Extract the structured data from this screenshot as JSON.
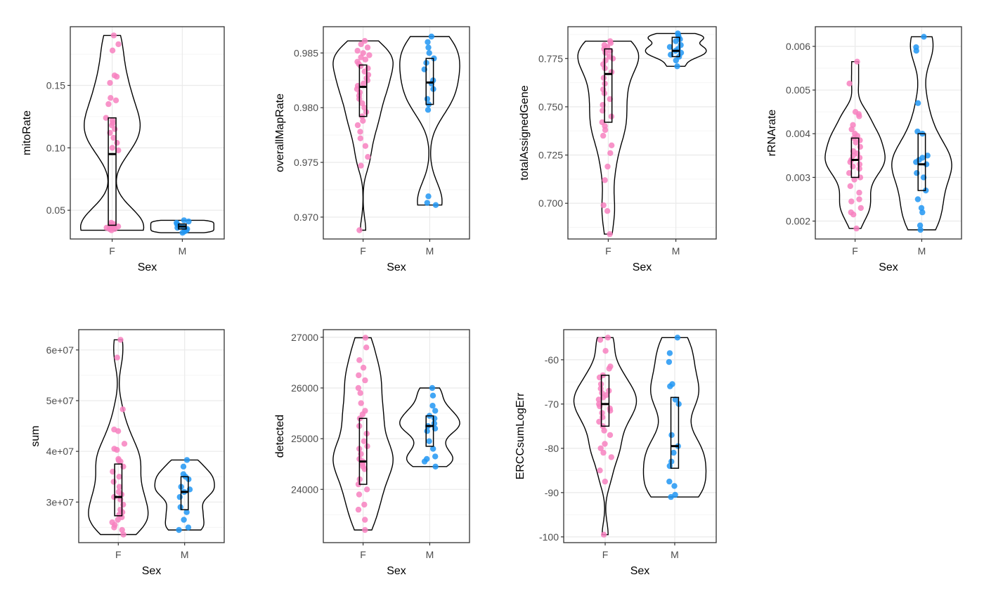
{
  "chart_data": [
    {
      "type": "violin",
      "ylabel": "mitoRate",
      "xlabel": "Sex",
      "categories": [
        "F",
        "M"
      ],
      "yticks": [
        "0.05",
        "0.10",
        "0.15"
      ],
      "ytick_values": [
        0.05,
        0.1,
        0.15
      ],
      "ylim": [
        0.027,
        0.197
      ],
      "groups": [
        {
          "name": "F",
          "min": 0.035,
          "q1": 0.038,
          "median": 0.095,
          "q3": 0.124,
          "max": 0.19,
          "points": [
            0.19,
            0.183,
            0.178,
            0.158,
            0.157,
            0.152,
            0.14,
            0.138,
            0.135,
            0.124,
            0.122,
            0.12,
            0.118,
            0.115,
            0.112,
            0.108,
            0.104,
            0.1,
            0.098,
            0.04,
            0.039,
            0.038,
            0.037,
            0.037,
            0.036,
            0.036,
            0.035,
            0.035,
            0.035,
            0.034
          ]
        },
        {
          "name": "M",
          "min": 0.032,
          "q1": 0.035,
          "median": 0.037,
          "q3": 0.039,
          "max": 0.042,
          "points": [
            0.042,
            0.041,
            0.04,
            0.039,
            0.038,
            0.037,
            0.036,
            0.035,
            0.034,
            0.033,
            0.032
          ]
        }
      ]
    },
    {
      "type": "violin",
      "ylabel": "overallMapRate",
      "xlabel": "Sex",
      "categories": [
        "F",
        "M"
      ],
      "yticks": [
        "0.970",
        "0.975",
        "0.980",
        "0.985"
      ],
      "ytick_values": [
        0.97,
        0.975,
        0.98,
        0.985
      ],
      "ylim": [
        0.968,
        0.9874
      ],
      "groups": [
        {
          "name": "F",
          "min": 0.9688,
          "q1": 0.9792,
          "median": 0.9819,
          "q3": 0.9839,
          "max": 0.9861,
          "points": [
            0.9861,
            0.9858,
            0.9855,
            0.9852,
            0.985,
            0.9848,
            0.9846,
            0.9844,
            0.9842,
            0.984,
            0.9838,
            0.9836,
            0.9833,
            0.983,
            0.9827,
            0.9825,
            0.9822,
            0.982,
            0.9817,
            0.9814,
            0.9811,
            0.9808,
            0.9804,
            0.98,
            0.9796,
            0.9792,
            0.9788,
            0.9784,
            0.9778,
            0.9772,
            0.9765,
            0.9755,
            0.9747,
            0.9688
          ]
        },
        {
          "name": "M",
          "min": 0.9711,
          "q1": 0.9803,
          "median": 0.9823,
          "q3": 0.9845,
          "max": 0.9865,
          "points": [
            0.9865,
            0.986,
            0.9855,
            0.985,
            0.9845,
            0.9841,
            0.9835,
            0.9825,
            0.9822,
            0.9817,
            0.9808,
            0.9803,
            0.9798,
            0.9719,
            0.9713,
            0.9711
          ]
        }
      ]
    },
    {
      "type": "violin",
      "ylabel": "totalAssignedGene",
      "xlabel": "Sex",
      "categories": [
        "F",
        "M"
      ],
      "yticks": [
        "0.700",
        "0.725",
        "0.750",
        "0.775"
      ],
      "ytick_values": [
        0.7,
        0.725,
        0.75,
        0.775
      ],
      "ylim": [
        0.6815,
        0.7915
      ],
      "groups": [
        {
          "name": "F",
          "min": 0.684,
          "q1": 0.742,
          "median": 0.767,
          "q3": 0.78,
          "max": 0.784,
          "points": [
            0.784,
            0.783,
            0.782,
            0.781,
            0.78,
            0.779,
            0.778,
            0.776,
            0.775,
            0.774,
            0.772,
            0.77,
            0.768,
            0.765,
            0.762,
            0.759,
            0.757,
            0.754,
            0.751,
            0.748,
            0.745,
            0.742,
            0.74,
            0.738,
            0.735,
            0.73,
            0.726,
            0.719,
            0.712,
            0.699,
            0.696,
            0.684
          ]
        },
        {
          "name": "M",
          "min": 0.771,
          "q1": 0.776,
          "median": 0.779,
          "q3": 0.786,
          "max": 0.788,
          "points": [
            0.788,
            0.787,
            0.786,
            0.785,
            0.784,
            0.782,
            0.781,
            0.78,
            0.779,
            0.778,
            0.777,
            0.776,
            0.774,
            0.771
          ]
        }
      ]
    },
    {
      "type": "violin",
      "ylabel": "rRNArate",
      "xlabel": "Sex",
      "categories": [
        "F",
        "M"
      ],
      "yticks": [
        "0.002",
        "0.003",
        "0.004",
        "0.005",
        "0.006"
      ],
      "ytick_values": [
        0.002,
        0.003,
        0.004,
        0.005,
        0.006
      ],
      "ylim": [
        0.00159,
        0.00645
      ],
      "groups": [
        {
          "name": "F",
          "min": 0.0018,
          "q1": 0.003,
          "median": 0.0034,
          "q3": 0.0039,
          "max": 0.0056,
          "points": [
            0.00565,
            0.00515,
            0.0045,
            0.00445,
            0.0044,
            0.0042,
            0.0041,
            0.004,
            0.00395,
            0.0039,
            0.00385,
            0.0038,
            0.0037,
            0.0036,
            0.00355,
            0.0035,
            0.00345,
            0.0034,
            0.00335,
            0.0033,
            0.00325,
            0.0032,
            0.0031,
            0.003,
            0.00295,
            0.0028,
            0.00265,
            0.0025,
            0.00245,
            0.0023,
            0.0022,
            0.00215,
            0.00183
          ]
        },
        {
          "name": "M",
          "min": 0.0018,
          "q1": 0.0027,
          "median": 0.0033,
          "q3": 0.004,
          "max": 0.0062,
          "points": [
            0.00622,
            0.00598,
            0.0059,
            0.0047,
            0.00405,
            0.004,
            0.0035,
            0.00345,
            0.0034,
            0.00335,
            0.0033,
            0.0031,
            0.003,
            0.0027,
            0.0025,
            0.0023,
            0.0022,
            0.0019,
            0.0018
          ]
        }
      ]
    },
    {
      "type": "violin",
      "ylabel": "sum",
      "xlabel": "Sex",
      "categories": [
        "F",
        "M"
      ],
      "yticks": [
        "3e+07",
        "4e+07",
        "5e+07",
        "6e+07"
      ],
      "ytick_values": [
        30000000,
        40000000,
        50000000,
        60000000
      ],
      "ylim": [
        22000000,
        64000000
      ],
      "groups": [
        {
          "name": "F",
          "min": 23500000,
          "q1": 27300000,
          "median": 31000000,
          "q3": 37500000,
          "max": 62000000,
          "points": [
            62000000,
            58500000,
            48300000,
            44300000,
            44000000,
            41500000,
            40500000,
            40300000,
            38500000,
            38200000,
            38000000,
            37000000,
            36000000,
            35000000,
            34000000,
            33000000,
            32000000,
            31500000,
            31000000,
            30500000,
            29500000,
            28500000,
            28000000,
            27500000,
            27000000,
            26500000,
            26000000,
            25500000,
            25000000,
            24500000,
            23600000
          ]
        },
        {
          "name": "M",
          "min": 24300000,
          "q1": 28500000,
          "median": 32000000,
          "q3": 35000000,
          "max": 38300000,
          "points": [
            38300000,
            37000000,
            35500000,
            35000000,
            34500000,
            33000000,
            32500000,
            32000000,
            31000000,
            29000000,
            28000000,
            26500000,
            25000000,
            24500000
          ]
        }
      ]
    },
    {
      "type": "violin",
      "ylabel": "detected",
      "xlabel": "Sex",
      "categories": [
        "F",
        "M"
      ],
      "yticks": [
        "24000",
        "25000",
        "26000",
        "27000"
      ],
      "ytick_values": [
        24000,
        25000,
        26000,
        27000
      ],
      "ylim": [
        22950,
        27150
      ],
      "groups": [
        {
          "name": "F",
          "min": 23200,
          "q1": 24100,
          "median": 24550,
          "q3": 25400,
          "max": 27000,
          "points": [
            26990,
            26800,
            26550,
            26400,
            26250,
            26150,
            26000,
            25900,
            25700,
            25550,
            25480,
            25400,
            25250,
            25100,
            24950,
            24850,
            24800,
            24700,
            24600,
            24550,
            24500,
            24450,
            24400,
            24200,
            24100,
            24000,
            23900,
            23700,
            23600,
            23400,
            23200
          ]
        },
        {
          "name": "M",
          "min": 24450,
          "q1": 24850,
          "median": 25250,
          "q3": 25450,
          "max": 26000,
          "points": [
            26000,
            25850,
            25650,
            25550,
            25450,
            25400,
            25300,
            25250,
            25200,
            25150,
            24950,
            24800,
            24650,
            24600,
            24550,
            24450
          ]
        }
      ]
    },
    {
      "type": "violin",
      "ylabel": "ERCCsumLogErr",
      "xlabel": "Sex",
      "categories": [
        "F",
        "M"
      ],
      "yticks": [
        "-100",
        "-90",
        "-80",
        "-70",
        "-60"
      ],
      "ytick_values": [
        -100,
        -90,
        -80,
        -70,
        -60
      ],
      "ylim": [
        -101.3,
        -53.2
      ],
      "groups": [
        {
          "name": "F",
          "min": -99.5,
          "q1": -75,
          "median": -70,
          "q3": -63.5,
          "max": -55,
          "points": [
            -55,
            -55.5,
            -58,
            -61.5,
            -62,
            -63.5,
            -64,
            -65.5,
            -66.5,
            -67,
            -67.5,
            -68,
            -68.5,
            -69,
            -70,
            -70.5,
            -71,
            -71.5,
            -72,
            -73,
            -74,
            -75,
            -76,
            -77,
            -79,
            -80,
            -81,
            -82,
            -85,
            -87.5,
            -99.5
          ]
        },
        {
          "name": "M",
          "min": -91,
          "q1": -84.5,
          "median": -79.5,
          "q3": -68.5,
          "max": -55,
          "points": [
            -55,
            -58.5,
            -60.5,
            -65.5,
            -66,
            -69,
            -70,
            -77,
            -79.5,
            -81,
            -83,
            -84,
            -87.5,
            -88.5,
            -90.5,
            -91
          ]
        }
      ]
    }
  ],
  "colors": {
    "F": "#F781BF",
    "M": "#2196F3",
    "frame": "#333333",
    "grid_major": "#EBEBEB",
    "grid_minor": "#F5F5F5"
  }
}
